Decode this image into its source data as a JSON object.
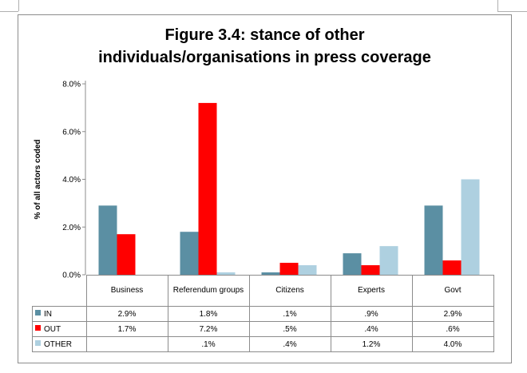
{
  "chart_data": {
    "type": "bar",
    "title_lines": [
      "Figure 3.4: stance of other",
      "individuals/organisations in press coverage"
    ],
    "ylabel": "% of all actors coded",
    "ylim": [
      0,
      8
    ],
    "yticks": [
      0,
      2,
      4,
      6,
      8
    ],
    "ytick_labels": [
      "0.0%",
      "2.0%",
      "4.0%",
      "6.0%",
      "8.0%"
    ],
    "categories": [
      "Business",
      "Referendum groups",
      "Citizens",
      "Experts",
      "Govt"
    ],
    "series": [
      {
        "name": "IN",
        "color": "#5b8fa3",
        "values": [
          2.9,
          1.8,
          0.1,
          0.9,
          2.9
        ],
        "labels": [
          "2.9%",
          "1.8%",
          ".1%",
          ".9%",
          "2.9%"
        ]
      },
      {
        "name": "OUT",
        "color": "#ff0000",
        "values": [
          1.7,
          7.2,
          0.5,
          0.4,
          0.6
        ],
        "labels": [
          "1.7%",
          "7.2%",
          ".5%",
          ".4%",
          ".6%"
        ]
      },
      {
        "name": "OTHER",
        "color": "#aed0e0",
        "values": [
          0.0,
          0.1,
          0.4,
          1.2,
          4.0
        ],
        "labels": [
          "",
          ".1%",
          ".4%",
          "1.2%",
          "4.0%"
        ]
      }
    ],
    "grid": false,
    "legend": "data-table"
  }
}
